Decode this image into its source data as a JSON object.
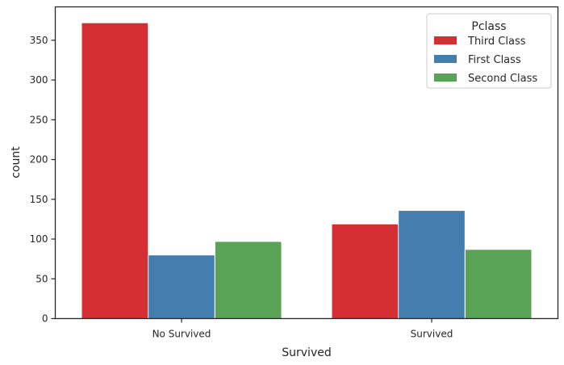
{
  "chart_data": {
    "type": "bar",
    "categories": [
      "No Survived",
      "Survived"
    ],
    "series": [
      {
        "name": "Third Class",
        "values": [
          372,
          119
        ],
        "color": "#d62f33"
      },
      {
        "name": "First Class",
        "values": [
          80,
          136
        ],
        "color": "#447eae"
      },
      {
        "name": "Second Class",
        "values": [
          97,
          87
        ],
        "color": "#59a356"
      }
    ],
    "xlabel": "Survived",
    "ylabel": "count",
    "ylim": [
      0,
      392
    ],
    "yticks": [
      0,
      50,
      100,
      150,
      200,
      250,
      300,
      350
    ],
    "legend": {
      "title": "Pclass",
      "placement": "top-right"
    },
    "grid": false
  }
}
